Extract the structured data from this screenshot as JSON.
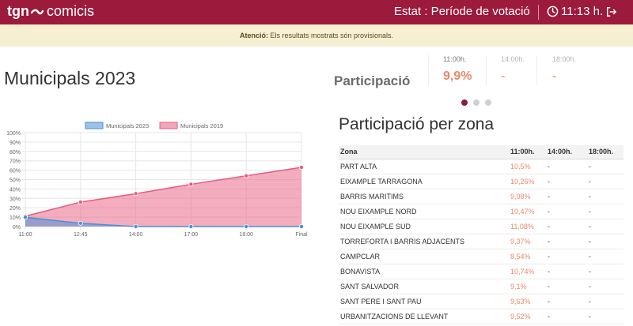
{
  "header": {
    "logo_main": "tgn",
    "logo_sub": "comicis",
    "estat_label": "Estat : Període de votació",
    "time": "11:13 h."
  },
  "notice": {
    "bold": "Atenció:",
    "text": " Els resultats mostrats són provisionals."
  },
  "page_title": "Municipals 2023",
  "participacio": {
    "label": "Participació",
    "columns": [
      {
        "time": "11:00h.",
        "value": "9,9%"
      },
      {
        "time": "14:00h.",
        "value": "-"
      },
      {
        "time": "18:00h.",
        "value": "-"
      }
    ]
  },
  "zone_section": {
    "title": "Participació per zona",
    "headers": [
      "Zona",
      "11:00h.",
      "14:00h.",
      "18:00h."
    ],
    "rows": [
      [
        "PART ALTA",
        "10,5%",
        "-",
        "-"
      ],
      [
        "EIXAMPLE TARRAGONA",
        "10,26%",
        "-",
        "-"
      ],
      [
        "BARRIS MARITIMS",
        "9,08%",
        "-",
        "-"
      ],
      [
        "NOU EIXAMPLE NORD",
        "10,47%",
        "-",
        "-"
      ],
      [
        "NOU EIXAMPLE SUD",
        "11,08%",
        "-",
        "-"
      ],
      [
        "TORREFORTA I BARRIS ADJACENTS",
        "9,37%",
        "-",
        "-"
      ],
      [
        "CAMPCLAR",
        "8,54%",
        "-",
        "-"
      ],
      [
        "BONAVISTA",
        "10,74%",
        "-",
        "-"
      ],
      [
        "SANT SALVADOR",
        "9,1%",
        "-",
        "-"
      ],
      [
        "SANT PERE I SANT PAU",
        "9,63%",
        "-",
        "-"
      ],
      [
        "URBANITZACIONS DE LLEVANT",
        "9,52%",
        "-",
        "-"
      ]
    ]
  },
  "colors": {
    "brand": "#9c1a3c",
    "accent": "#e8896a",
    "series_2023": "#4a90d9",
    "series_2019": "#e85c7f"
  },
  "chart_data": {
    "type": "area",
    "categories": [
      "11:00",
      "12:45",
      "14:00",
      "17:00",
      "18:00",
      "Final"
    ],
    "ylim": [
      0,
      100
    ],
    "yticks": [
      "0%",
      "10%",
      "20%",
      "30%",
      "40%",
      "50%",
      "60%",
      "70%",
      "80%",
      "90%",
      "100%"
    ],
    "legend": "top",
    "series": [
      {
        "name": "Municipals 2023",
        "values": [
          9.9,
          3.5,
          0,
          0,
          0,
          0
        ]
      },
      {
        "name": "Municipals 2019",
        "values": [
          11,
          26,
          35,
          45,
          54,
          63
        ]
      }
    ]
  }
}
